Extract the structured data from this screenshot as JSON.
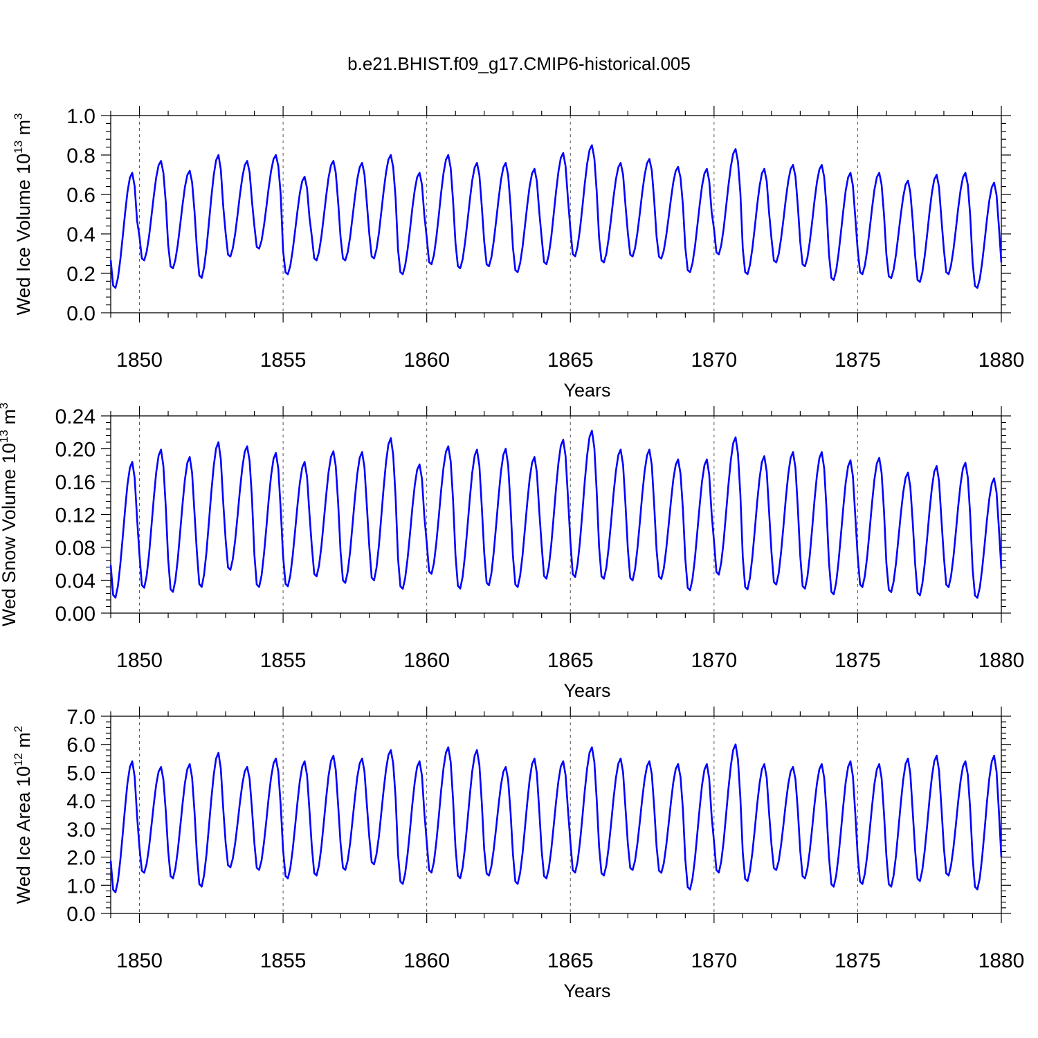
{
  "figure": {
    "title": "b.e21.BHIST.f09_g17.CMIP6-historical.005"
  },
  "chart_data": [
    {
      "type": "line",
      "title": "b.e21.BHIST.f09_g17.CMIP6-historical.005",
      "xlabel": "Years",
      "ylabel": {
        "base": "Wed Ice Volume 10",
        "exp": "13",
        "unit": " m",
        "unit_exp": "3"
      },
      "xlim": [
        1849,
        1880
      ],
      "ylim": [
        0.0,
        1.0
      ],
      "xticks": [
        1850,
        1855,
        1860,
        1865,
        1870,
        1875,
        1880
      ],
      "yticks": [
        0.0,
        0.2,
        0.4,
        0.6,
        0.8,
        1.0
      ],
      "ytick_labels": [
        "0.0",
        "0.2",
        "0.4",
        "0.6",
        "0.8",
        "1.0"
      ],
      "grid": "dashed vertical at major x ticks",
      "series": [
        {
          "color": "#0000ff",
          "x_start": 1849.0,
          "x_step_months": 1,
          "annual_max": [
            0.71,
            0.77,
            0.72,
            0.8,
            0.77,
            0.8,
            0.69,
            0.77,
            0.76,
            0.8,
            0.71,
            0.8,
            0.76,
            0.76,
            0.73,
            0.81,
            0.85,
            0.76,
            0.78,
            0.74,
            0.73,
            0.83,
            0.73,
            0.75,
            0.75,
            0.71,
            0.71,
            0.67,
            0.7,
            0.71,
            0.66
          ],
          "annual_min": [
            0.12,
            0.26,
            0.22,
            0.17,
            0.28,
            0.32,
            0.19,
            0.26,
            0.26,
            0.27,
            0.19,
            0.24,
            0.22,
            0.23,
            0.2,
            0.24,
            0.28,
            0.25,
            0.28,
            0.27,
            0.2,
            0.29,
            0.19,
            0.25,
            0.23,
            0.16,
            0.19,
            0.17,
            0.15,
            0.19,
            0.12
          ]
        }
      ]
    },
    {
      "type": "line",
      "xlabel": "Years",
      "ylabel": {
        "base": "Wed Snow Volume 10",
        "exp": "13",
        "unit": " m",
        "unit_exp": "3"
      },
      "xlim": [
        1849,
        1880
      ],
      "ylim": [
        0.0,
        0.24
      ],
      "xticks": [
        1850,
        1855,
        1860,
        1865,
        1870,
        1875,
        1880
      ],
      "yticks": [
        0.0,
        0.04,
        0.08,
        0.12,
        0.16,
        0.2,
        0.24
      ],
      "ytick_labels": [
        "0.00",
        "0.04",
        "0.08",
        "0.12",
        "0.16",
        "0.20",
        "0.24"
      ],
      "grid": "dashed vertical at major x ticks",
      "series": [
        {
          "color": "#0000ff",
          "x_start": 1849.0,
          "x_step_months": 1,
          "annual_max": [
            0.184,
            0.199,
            0.19,
            0.208,
            0.203,
            0.195,
            0.184,
            0.197,
            0.196,
            0.213,
            0.181,
            0.203,
            0.199,
            0.2,
            0.19,
            0.211,
            0.222,
            0.199,
            0.199,
            0.187,
            0.187,
            0.214,
            0.191,
            0.196,
            0.196,
            0.186,
            0.189,
            0.171,
            0.179,
            0.183,
            0.164
          ],
          "annual_min": [
            0.017,
            0.029,
            0.024,
            0.03,
            0.051,
            0.03,
            0.031,
            0.043,
            0.035,
            0.038,
            0.028,
            0.046,
            0.028,
            0.032,
            0.03,
            0.04,
            0.042,
            0.04,
            0.038,
            0.04,
            0.026,
            0.045,
            0.027,
            0.033,
            0.028,
            0.021,
            0.03,
            0.024,
            0.02,
            0.03,
            0.017
          ]
        }
      ]
    },
    {
      "type": "line",
      "xlabel": "Years",
      "ylabel": {
        "base": "Wed Ice Area 10",
        "exp": "12",
        "unit": " m",
        "unit_exp": "2"
      },
      "xlim": [
        1849,
        1880
      ],
      "ylim": [
        0.0,
        7.0
      ],
      "xticks": [
        1850,
        1855,
        1860,
        1865,
        1870,
        1875,
        1880
      ],
      "yticks": [
        0,
        1,
        2,
        3,
        4,
        5,
        6,
        7
      ],
      "ytick_labels": [
        "0.0",
        "1.0",
        "2.0",
        "3.0",
        "4.0",
        "5.0",
        "6.0",
        "7.0"
      ],
      "grid": "dashed vertical at major x ticks",
      "series": [
        {
          "color": "#0000ff",
          "x_start": 1849.0,
          "x_step_months": 1,
          "annual_max": [
            5.4,
            5.2,
            5.3,
            5.7,
            5.2,
            5.5,
            5.4,
            5.6,
            5.5,
            5.8,
            5.4,
            5.9,
            5.8,
            5.2,
            5.5,
            5.4,
            5.9,
            5.5,
            5.4,
            5.3,
            5.3,
            6.0,
            5.3,
            5.2,
            5.3,
            5.4,
            5.3,
            5.5,
            5.6,
            5.4,
            5.6
          ],
          "annual_min": [
            0.7,
            1.4,
            1.2,
            0.9,
            1.6,
            1.5,
            1.2,
            1.3,
            1.5,
            1.7,
            1.0,
            1.4,
            1.2,
            1.3,
            1.0,
            1.2,
            1.4,
            1.3,
            1.5,
            1.4,
            0.8,
            1.4,
            1.1,
            1.5,
            1.2,
            0.9,
            1.0,
            0.9,
            1.1,
            1.3,
            0.8
          ]
        }
      ]
    }
  ]
}
